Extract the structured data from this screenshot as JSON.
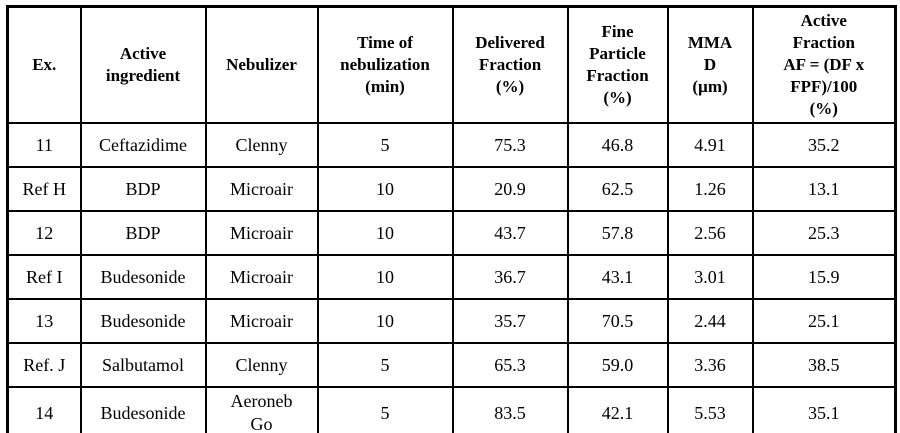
{
  "table": {
    "colors": {
      "border": "#000000",
      "background": "#ffffff",
      "text": "#000000"
    },
    "columns": [
      {
        "id": "ex",
        "label": "Ex."
      },
      {
        "id": "active-ingredient",
        "label": "Active\ningredient"
      },
      {
        "id": "nebulizer",
        "label": "Nebulizer"
      },
      {
        "id": "time-of-nebulization",
        "label": "Time of\nnebulization\n(min)"
      },
      {
        "id": "delivered-fraction",
        "label": "Delivered\nFraction\n(%)"
      },
      {
        "id": "fine-particle-fraction",
        "label": "Fine\nParticle\nFraction\n(%)"
      },
      {
        "id": "mmad",
        "label": "MMA\nD\n(µm)"
      },
      {
        "id": "active-fraction",
        "label": "Active\nFraction\nAF = (DF x\nFPF)/100\n(%)"
      }
    ],
    "rows": [
      {
        "cells": [
          "11",
          "Ceftazidime",
          "Clenny",
          "5",
          "75.3",
          "46.8",
          "4.91",
          "35.2"
        ]
      },
      {
        "cells": [
          "Ref H",
          "BDP",
          "Microair",
          "10",
          "20.9",
          "62.5",
          "1.26",
          "13.1"
        ]
      },
      {
        "cells": [
          "12",
          "BDP",
          "Microair",
          "10",
          "43.7",
          "57.8",
          "2.56",
          "25.3"
        ]
      },
      {
        "cells": [
          "Ref I",
          "Budesonide",
          "Microair",
          "10",
          "36.7",
          "43.1",
          "3.01",
          "15.9"
        ]
      },
      {
        "cells": [
          "13",
          "Budesonide",
          "Microair",
          "10",
          "35.7",
          "70.5",
          "2.44",
          "25.1"
        ]
      },
      {
        "cells": [
          "Ref. J",
          "Salbutamol",
          "Clenny",
          "5",
          "65.3",
          "59.0",
          "3.36",
          "38.5"
        ]
      },
      {
        "cells": [
          "14",
          "Budesonide",
          "Aeroneb\nGo",
          "5",
          "83.5",
          "42.1",
          "5.53",
          "35.1"
        ]
      }
    ]
  }
}
